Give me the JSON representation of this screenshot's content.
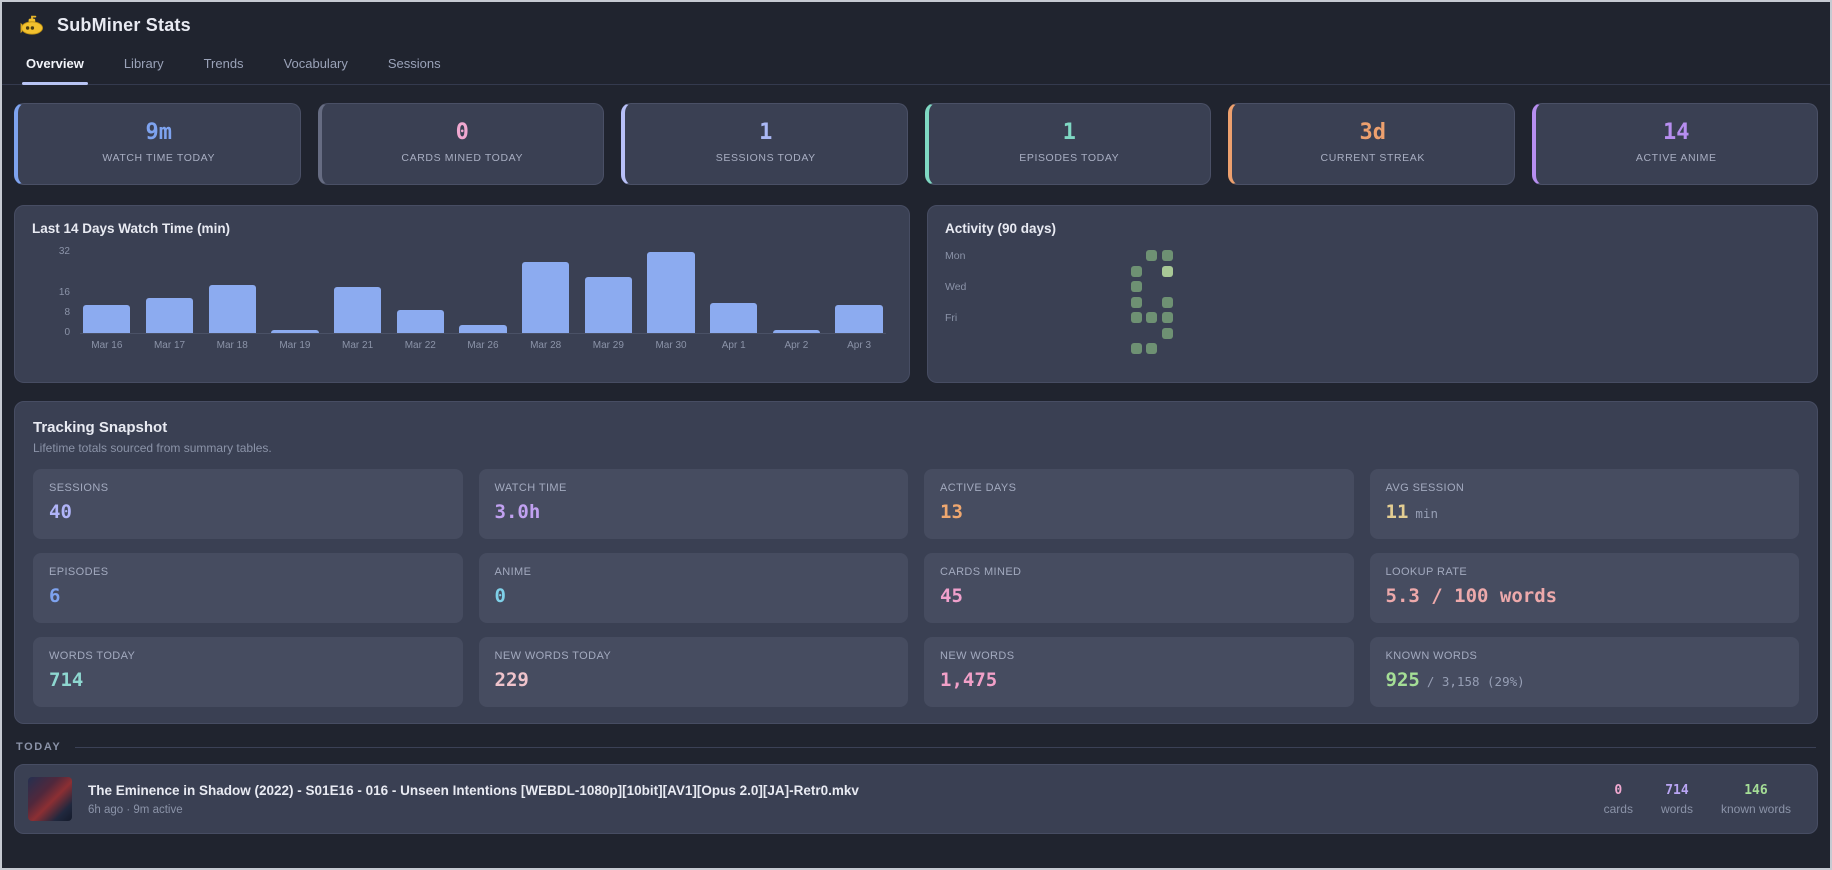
{
  "window": {
    "title": "SubMiner Stats"
  },
  "tabs": [
    {
      "label": "Overview",
      "active": true
    },
    {
      "label": "Library",
      "active": false
    },
    {
      "label": "Trends",
      "active": false
    },
    {
      "label": "Vocabulary",
      "active": false
    },
    {
      "label": "Sessions",
      "active": false
    }
  ],
  "summary_cards": [
    {
      "value": "9m",
      "label": "WATCH TIME TODAY",
      "color": "#7ea3ef",
      "accent": "#7ea3ef"
    },
    {
      "value": "0",
      "label": "CARDS MINED TODAY",
      "color": "#f0a8d0",
      "accent": "#666c82"
    },
    {
      "value": "1",
      "label": "SESSIONS TODAY",
      "color": "#aab8f5",
      "accent": "#b8c0f8"
    },
    {
      "value": "1",
      "label": "EPISODES TODAY",
      "color": "#7fd8c3",
      "accent": "#7fd8c3"
    },
    {
      "value": "3d",
      "label": "CURRENT STREAK",
      "color": "#eda06e",
      "accent": "#eda06e"
    },
    {
      "value": "14",
      "label": "ACTIVE ANIME",
      "color": "#b78ef0",
      "accent": "#b78ef0"
    }
  ],
  "chart_data": {
    "type": "bar",
    "title": "Last 14 Days Watch Time (min)",
    "categories": [
      "Mar 16",
      "Mar 17",
      "Mar 18",
      "Mar 19",
      "Mar 21",
      "Mar 22",
      "Mar 26",
      "Mar 28",
      "Mar 29",
      "Mar 30",
      "Apr 1",
      "Apr 2",
      "Apr 3"
    ],
    "values": [
      11,
      14,
      19,
      1,
      18,
      9,
      3,
      28,
      22,
      32,
      12,
      1,
      11
    ],
    "xlabel": "",
    "ylabel": "",
    "ylim": [
      0,
      32
    ],
    "yticks": [
      0,
      8,
      16,
      32
    ],
    "bar_color": "#8cabf0",
    "grid": false,
    "legend": false
  },
  "activity": {
    "title": "Activity (90 days)",
    "day_labels": [
      "Mon",
      "Wed",
      "Fri"
    ],
    "grid": {
      "rows": 7,
      "cols": 13
    },
    "cells": [
      {
        "row": 0,
        "col": 10,
        "level": 1
      },
      {
        "row": 0,
        "col": 11,
        "level": 1
      },
      {
        "row": 1,
        "col": 9,
        "level": 1
      },
      {
        "row": 1,
        "col": 11,
        "level": 2
      },
      {
        "row": 2,
        "col": 9,
        "level": 1
      },
      {
        "row": 3,
        "col": 9,
        "level": 1
      },
      {
        "row": 3,
        "col": 11,
        "level": 1
      },
      {
        "row": 4,
        "col": 9,
        "level": 1
      },
      {
        "row": 4,
        "col": 10,
        "level": 1
      },
      {
        "row": 4,
        "col": 11,
        "level": 1
      },
      {
        "row": 5,
        "col": 11,
        "level": 1
      },
      {
        "row": 6,
        "col": 9,
        "level": 1
      },
      {
        "row": 6,
        "col": 10,
        "level": 1
      }
    ],
    "level_colors": {
      "1": "#6e9173",
      "2": "#a8c896"
    }
  },
  "snapshot": {
    "title": "Tracking Snapshot",
    "subtitle": "Lifetime totals sourced from summary tables.",
    "tiles": [
      {
        "label": "SESSIONS",
        "value": "40",
        "suffix": "",
        "color": "#b0b4f8"
      },
      {
        "label": "WATCH TIME",
        "value": "3.0h",
        "suffix": "",
        "color": "#c1a1f1"
      },
      {
        "label": "ACTIVE DAYS",
        "value": "13",
        "suffix": "",
        "color": "#efa76f"
      },
      {
        "label": "AVG SESSION",
        "value": "11",
        "suffix": "min",
        "color": "#e3cd92"
      },
      {
        "label": "EPISODES",
        "value": "6",
        "suffix": "",
        "color": "#7ea3ef"
      },
      {
        "label": "ANIME",
        "value": "0",
        "suffix": "",
        "color": "#7fd0e8"
      },
      {
        "label": "CARDS MINED",
        "value": "45",
        "suffix": "",
        "color": "#f0a0cc"
      },
      {
        "label": "LOOKUP RATE",
        "value": "5.3 / 100 words",
        "suffix": "",
        "color": "#eda9ab"
      },
      {
        "label": "WORDS TODAY",
        "value": "714",
        "suffix": "",
        "color": "#8ed7d0"
      },
      {
        "label": "NEW WORDS TODAY",
        "value": "229",
        "suffix": "",
        "color": "#efc3cb"
      },
      {
        "label": "NEW WORDS",
        "value": "1,475",
        "suffix": "",
        "color": "#f2a0c8"
      },
      {
        "label": "KNOWN WORDS",
        "value": "925",
        "suffix": "/ 3,158 (29%)",
        "color": "#a5de96"
      }
    ]
  },
  "today": {
    "heading": "TODAY",
    "entry": {
      "title": "The Eminence in Shadow (2022) - S01E16 - 016 - Unseen Intentions [WEBDL-1080p][10bit][AV1][Opus 2.0][JA]-Retr0.mkv",
      "meta": "6h ago · 9m active",
      "stats": [
        {
          "value": "0",
          "label": "cards",
          "color": "#f0a8d0"
        },
        {
          "value": "714",
          "label": "words",
          "color": "#b9a5f3"
        },
        {
          "value": "146",
          "label": "known words",
          "color": "#a5de96"
        }
      ]
    }
  }
}
